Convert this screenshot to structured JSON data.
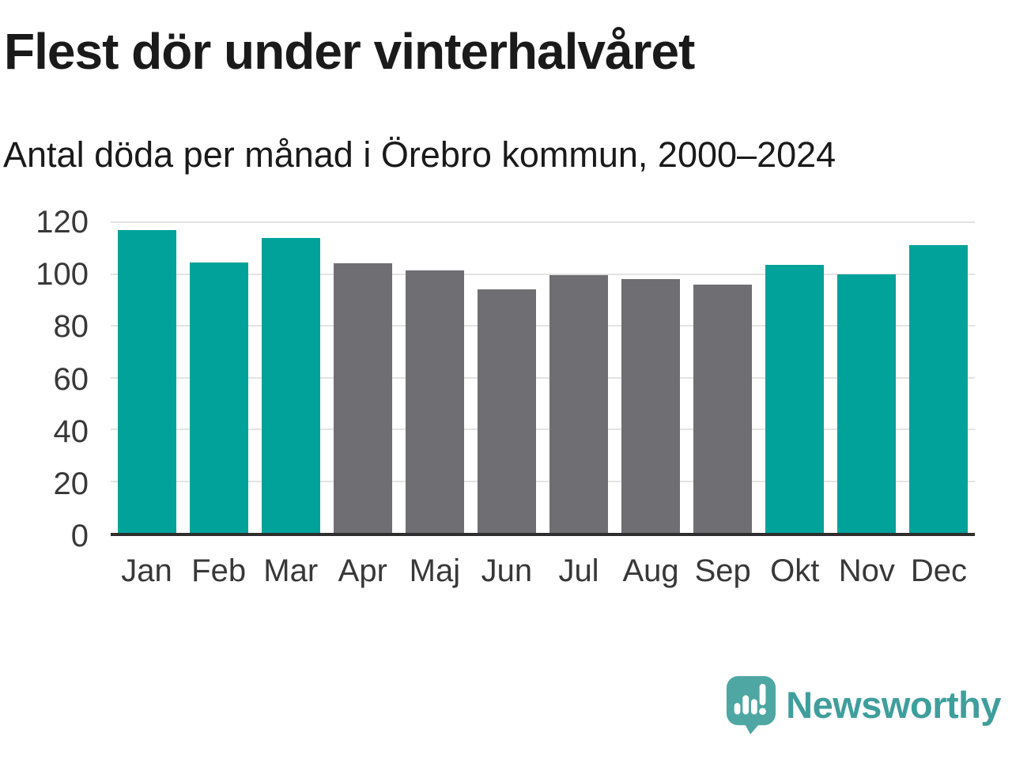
{
  "page": {
    "title": "Flest dör under vinterhalvåret",
    "subtitle": "Antal döda per månad i Örebro kommun, 2000–2024"
  },
  "chart_data": {
    "type": "bar",
    "title": "Flest dör under vinterhalvåret",
    "subtitle": "Antal döda per månad i Örebro kommun, 2000–2024",
    "categories": [
      "Jan",
      "Feb",
      "Mar",
      "Apr",
      "Maj",
      "Jun",
      "Jul",
      "Aug",
      "Sep",
      "Okt",
      "Nov",
      "Dec"
    ],
    "values": [
      117,
      104.5,
      114,
      104,
      101.5,
      94,
      99.5,
      98,
      96,
      103.5,
      100,
      111
    ],
    "bar_colors": [
      "#00a29a",
      "#00a29a",
      "#00a29a",
      "#6e6e73",
      "#6e6e73",
      "#6e6e73",
      "#6e6e73",
      "#6e6e73",
      "#6e6e73",
      "#00a29a",
      "#00a29a",
      "#00a29a"
    ],
    "bar_groups": [
      "winter",
      "winter",
      "winter",
      "summer",
      "summer",
      "summer",
      "summer",
      "summer",
      "summer",
      "winter",
      "winter",
      "winter"
    ],
    "xlabel": "",
    "ylabel": "",
    "ylim": [
      0,
      120
    ],
    "yticks": [
      0,
      20,
      40,
      60,
      80,
      100,
      120
    ],
    "grid": true,
    "legend_position": "none",
    "colors": {
      "winter_bar": "#00a29a",
      "summer_bar": "#6e6e73",
      "gridline": "#e3e3e3",
      "axis_line": "#2e2e2e",
      "tick_text": "#383838"
    }
  },
  "footer": {
    "brand": "Newsworthy",
    "logo_icon": "newsworthy-speech-bubble-bar-chart-icon",
    "brand_color": "#3f9e9c",
    "icon_color": "#4ea7a2"
  }
}
